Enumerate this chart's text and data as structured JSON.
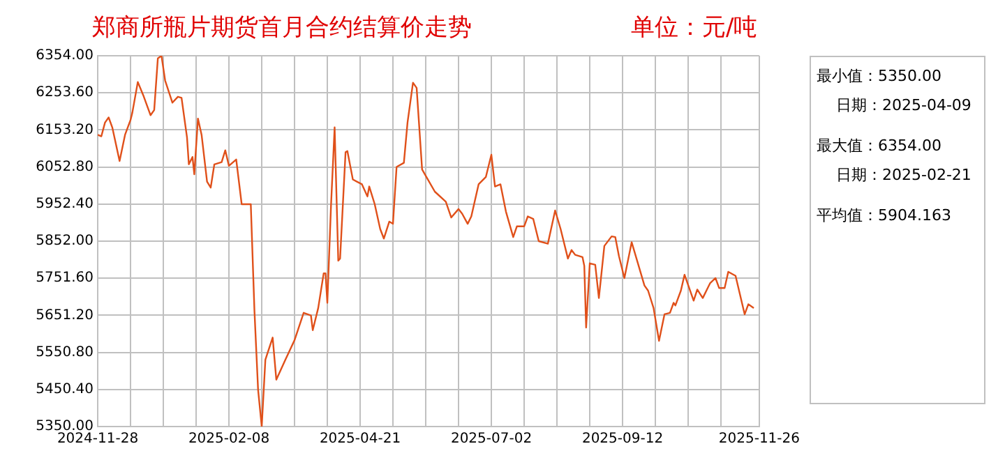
{
  "chart_data": {
    "type": "line",
    "title": "郑商所瓶片期货首月合约结算价走势",
    "subtitle": "单位：元/吨",
    "x": [
      "2024-11-28",
      "2024-11-30",
      "2024-12-02",
      "2024-12-04",
      "2024-12-06",
      "2024-12-10",
      "2024-12-13",
      "2024-12-16",
      "2024-12-17",
      "2024-12-20",
      "2024-12-23",
      "2024-12-27",
      "2024-12-29",
      "2024-12-31",
      "2025-01-02",
      "2025-01-04",
      "2025-01-08",
      "2025-01-11",
      "2025-01-13",
      "2025-01-16",
      "2025-01-17",
      "2025-01-19",
      "2025-01-20",
      "2025-01-22",
      "2025-01-24",
      "2025-01-27",
      "2025-01-29",
      "2025-01-31",
      "2025-02-04",
      "2025-02-06",
      "2025-02-08",
      "2025-02-12",
      "2025-02-15",
      "2025-02-20",
      "2025-02-22",
      "2025-02-24",
      "2025-02-26",
      "2025-02-28",
      "2025-03-04",
      "2025-03-06",
      "2025-03-11",
      "2025-03-16",
      "2025-03-21",
      "2025-03-25",
      "2025-03-26",
      "2025-03-29",
      "2025-04-01",
      "2025-04-02",
      "2025-04-03",
      "2025-04-05",
      "2025-04-07",
      "2025-04-09",
      "2025-04-10",
      "2025-04-13",
      "2025-04-14",
      "2025-04-17",
      "2025-04-22",
      "2025-04-25",
      "2025-04-26",
      "2025-04-29",
      "2025-05-02",
      "2025-05-04",
      "2025-05-07",
      "2025-05-09",
      "2025-05-11",
      "2025-05-15",
      "2025-05-17",
      "2025-05-20",
      "2025-05-22",
      "2025-05-25",
      "2025-06-01",
      "2025-06-07",
      "2025-06-10",
      "2025-06-14",
      "2025-06-16",
      "2025-06-19",
      "2025-06-21",
      "2025-06-25",
      "2025-06-29",
      "2025-07-02",
      "2025-07-04",
      "2025-07-07",
      "2025-07-10",
      "2025-07-14",
      "2025-07-16",
      "2025-07-20",
      "2025-07-22",
      "2025-07-25",
      "2025-07-28",
      "2025-08-02",
      "2025-08-06",
      "2025-08-09",
      "2025-08-13",
      "2025-08-15",
      "2025-08-17",
      "2025-08-21",
      "2025-08-22",
      "2025-08-23",
      "2025-08-25",
      "2025-08-28",
      "2025-08-30",
      "2025-09-02",
      "2025-09-06",
      "2025-09-08",
      "2025-09-10",
      "2025-09-13",
      "2025-09-17",
      "2025-09-20",
      "2025-09-24",
      "2025-09-26",
      "2025-09-29",
      "2025-10-02",
      "2025-10-05",
      "2025-10-08",
      "2025-10-10",
      "2025-10-11",
      "2025-10-14",
      "2025-10-16",
      "2025-10-21",
      "2025-10-23",
      "2025-10-26",
      "2025-10-30",
      "2025-11-02",
      "2025-11-04",
      "2025-11-07",
      "2025-11-09",
      "2025-11-13",
      "2025-11-18",
      "2025-11-20",
      "2025-11-23"
    ],
    "series": [
      {
        "color": "#e0501a",
        "values": [
          6140,
          6136,
          6173,
          6187,
          6160,
          6069,
          6140,
          6180,
          6200,
          6283,
          6247,
          6193,
          6207,
          6347,
          6354,
          6287,
          6227,
          6243,
          6240,
          6133,
          6060,
          6080,
          6033,
          6184,
          6140,
          6013,
          5997,
          6060,
          6066,
          6098,
          6056,
          6073,
          5952,
          5952,
          5664,
          5450,
          5350,
          5531,
          5591,
          5477,
          5531,
          5584,
          5658,
          5651,
          5611,
          5671,
          5765,
          5765,
          5685,
          5946,
          6160,
          5799,
          5805,
          6093,
          6096,
          6019,
          6006,
          5973,
          6000,
          5952,
          5885,
          5859,
          5905,
          5899,
          6053,
          6064,
          6173,
          6281,
          6267,
          6046,
          5986,
          5959,
          5916,
          5939,
          5926,
          5899,
          5919,
          6006,
          6026,
          6086,
          6000,
          6006,
          5932,
          5863,
          5892,
          5892,
          5919,
          5912,
          5852,
          5845,
          5935,
          5885,
          5805,
          5828,
          5815,
          5809,
          5785,
          5618,
          5792,
          5788,
          5698,
          5839,
          5865,
          5863,
          5812,
          5752,
          5849,
          5799,
          5732,
          5718,
          5671,
          5582,
          5654,
          5658,
          5685,
          5678,
          5718,
          5761,
          5691,
          5721,
          5698,
          5738,
          5752,
          5725,
          5725,
          5769,
          5758,
          5654,
          5681,
          5671
        ]
      }
    ],
    "xlim": [
      "2024-11-28",
      "2025-11-26"
    ],
    "xticks": [
      {
        "value": "2024-11-28",
        "label": "2024-11-28"
      },
      {
        "value": "2024-12-16",
        "label": null
      },
      {
        "value": "2025-01-03",
        "label": null
      },
      {
        "value": "2025-01-21",
        "label": null
      },
      {
        "value": "2025-02-08",
        "label": "2025-02-08"
      },
      {
        "value": "2025-02-26",
        "label": null
      },
      {
        "value": "2025-03-16",
        "label": null
      },
      {
        "value": "2025-04-03",
        "label": null
      },
      {
        "value": "2025-04-21",
        "label": "2025-04-21"
      },
      {
        "value": "2025-05-09",
        "label": null
      },
      {
        "value": "2025-05-27",
        "label": null
      },
      {
        "value": "2025-06-14",
        "label": null
      },
      {
        "value": "2025-07-02",
        "label": "2025-07-02"
      },
      {
        "value": "2025-07-20",
        "label": null
      },
      {
        "value": "2025-08-07",
        "label": null
      },
      {
        "value": "2025-08-25",
        "label": null
      },
      {
        "value": "2025-09-12",
        "label": "2025-09-12"
      },
      {
        "value": "2025-09-30",
        "label": null
      },
      {
        "value": "2025-10-18",
        "label": null
      },
      {
        "value": "2025-11-05",
        "label": null
      },
      {
        "value": "2025-11-26",
        "label": "2025-11-26"
      }
    ],
    "ylim": [
      5350,
      6354
    ],
    "yticks": [
      {
        "value": 5350,
        "label": "5350.00"
      },
      {
        "value": 5450.4,
        "label": "5450.40"
      },
      {
        "value": 5550.8,
        "label": "5550.80"
      },
      {
        "value": 5651.2,
        "label": "5651.20"
      },
      {
        "value": 5751.6,
        "label": "5751.60"
      },
      {
        "value": 5852,
        "label": "5852.00"
      },
      {
        "value": 5952.4,
        "label": "5952.40"
      },
      {
        "value": 6052.8,
        "label": "6052.80"
      },
      {
        "value": 6153.2,
        "label": "6153.20"
      },
      {
        "value": 6253.6,
        "label": "6253.60"
      },
      {
        "value": 6354,
        "label": "6354.00"
      }
    ],
    "grid": true,
    "marker": "none",
    "line_style": "solid",
    "annotations": [
      "最小值：5350.00",
      "日期：2025-04-09",
      "最大值：6354.00",
      "日期：2025-02-21",
      "平均值：5904.163"
    ]
  }
}
